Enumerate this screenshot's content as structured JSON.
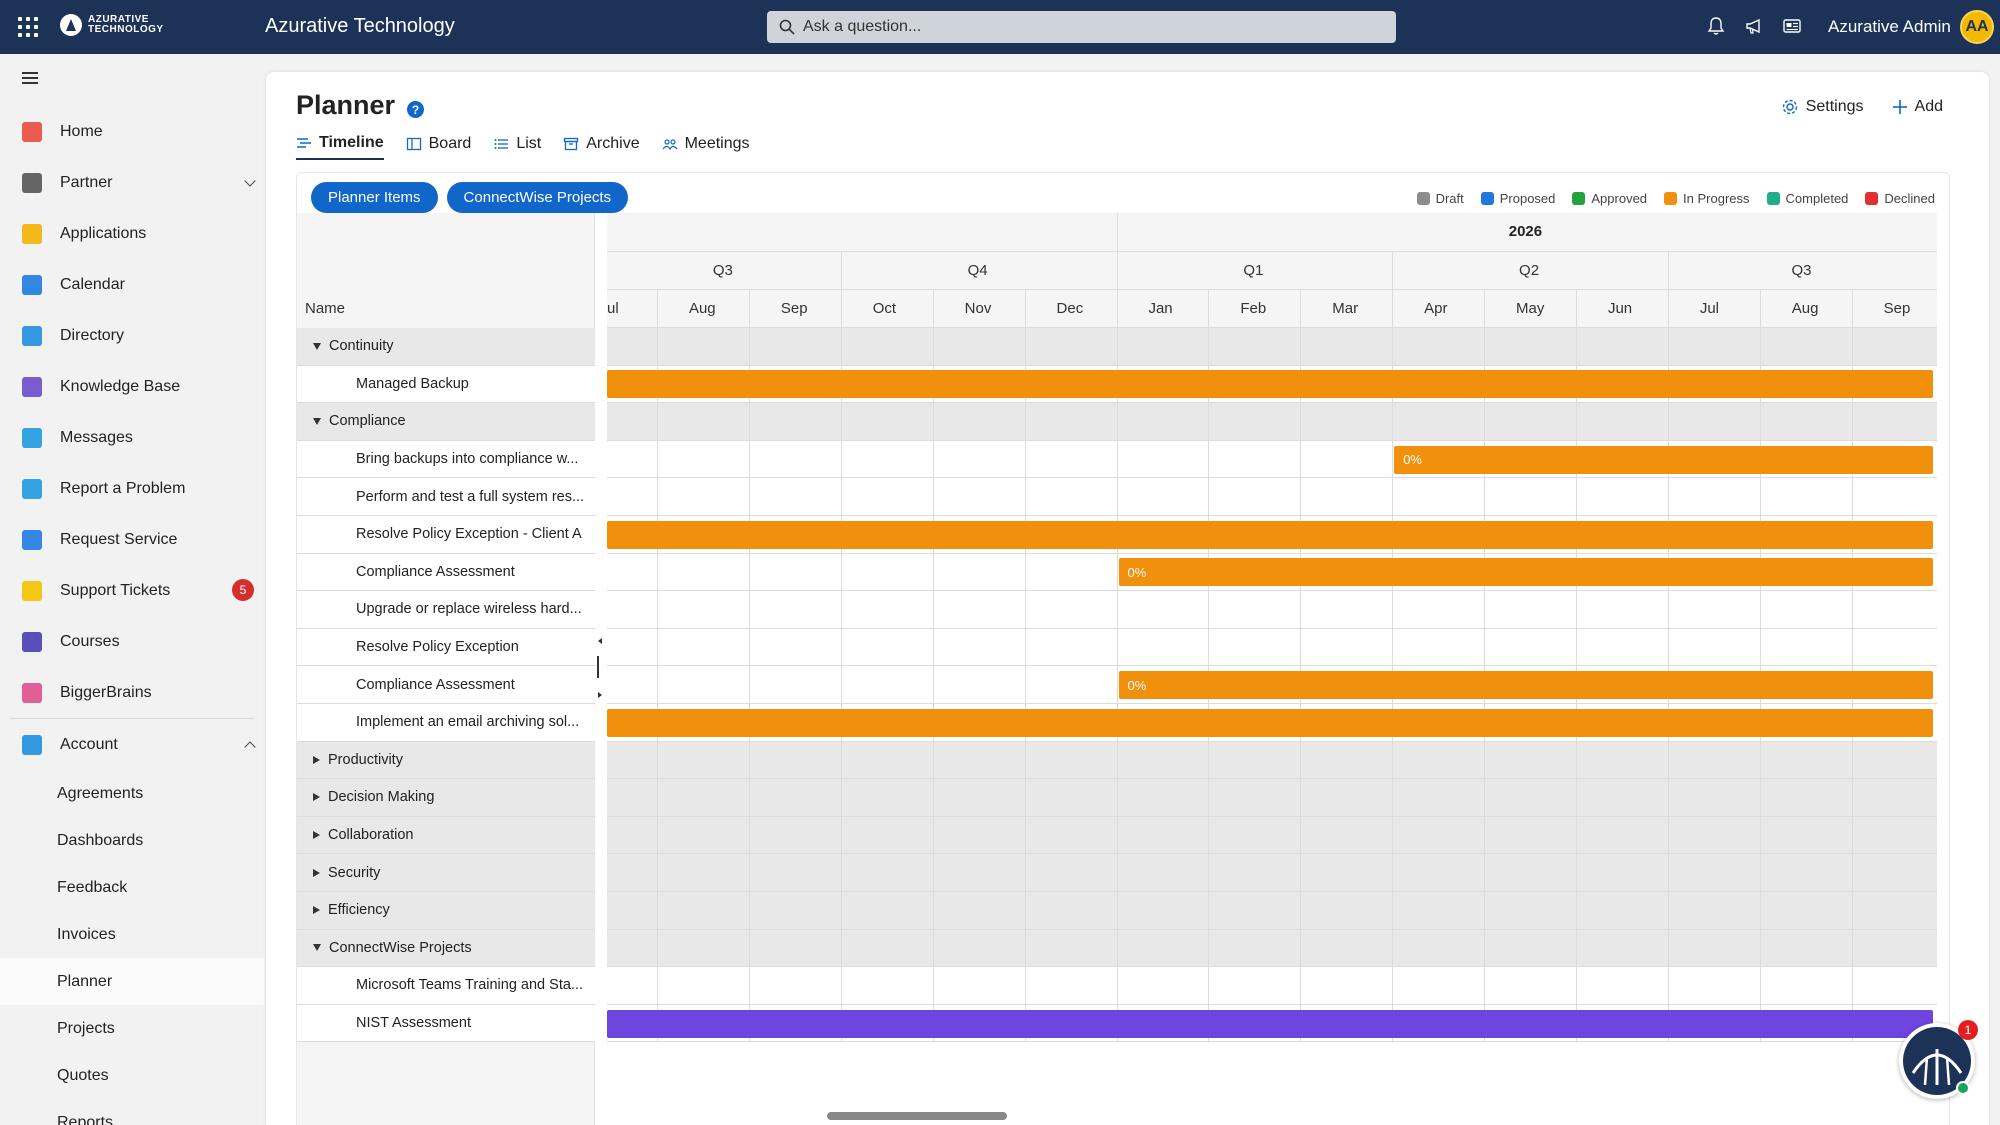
{
  "header": {
    "logo_line1": "AZURATIVE",
    "logo_line2": "TECHNOLOGY",
    "app_title": "Azurative Technology",
    "search_placeholder": "Ask a question...",
    "user_name": "Azurative Admin",
    "avatar_initials": "AA"
  },
  "sidebar": {
    "items": [
      {
        "label": "Home",
        "icon": "home-icon",
        "color": "#e94b3c"
      },
      {
        "label": "Partner",
        "icon": "partner-icon",
        "color": "#555555"
      },
      {
        "label": "Applications",
        "icon": "applications-icon",
        "color": "#f2b200"
      },
      {
        "label": "Calendar",
        "icon": "calendar-icon",
        "color": "#1e7be0"
      },
      {
        "label": "Directory",
        "icon": "directory-icon",
        "color": "#1e8fe0"
      },
      {
        "label": "Knowledge Base",
        "icon": "knowledge-base-icon",
        "color": "#6b4bc9"
      },
      {
        "label": "Messages",
        "icon": "messages-icon",
        "color": "#1e9be0"
      },
      {
        "label": "Report a Problem",
        "icon": "report-problem-icon",
        "color": "#1e9be0"
      },
      {
        "label": "Request Service",
        "icon": "request-service-icon",
        "color": "#1e7be0"
      },
      {
        "label": "Support Tickets",
        "icon": "support-tickets-icon",
        "color": "#f2c200",
        "badge": "5"
      },
      {
        "label": "Courses",
        "icon": "courses-icon",
        "color": "#4a3bb5"
      },
      {
        "label": "BiggerBrains",
        "icon": "biggerbrains-icon",
        "color": "#e04e8c"
      }
    ],
    "account": {
      "label": "Account",
      "icon": "account-icon",
      "color": "#1e8fe0"
    },
    "sub_items": [
      "Agreements",
      "Dashboards",
      "Feedback",
      "Invoices",
      "Planner",
      "Projects",
      "Quotes",
      "Reports"
    ],
    "active_sub_item": "Planner"
  },
  "page": {
    "title": "Planner",
    "help": "?",
    "settings_label": "Settings",
    "add_label": "Add",
    "tabs": [
      {
        "label": "Timeline",
        "icon": "timeline-icon",
        "active": true
      },
      {
        "label": "Board",
        "icon": "board-icon",
        "active": false
      },
      {
        "label": "List",
        "icon": "list-icon",
        "active": false
      },
      {
        "label": "Archive",
        "icon": "archive-icon",
        "active": false
      },
      {
        "label": "Meetings",
        "icon": "meetings-icon",
        "active": false
      }
    ],
    "chips": [
      "Planner Items",
      "ConnectWise Projects"
    ],
    "legend": [
      {
        "label": "Draft",
        "color": "#8c8c8c"
      },
      {
        "label": "Proposed",
        "color": "#1f7ad9"
      },
      {
        "label": "Approved",
        "color": "#23a33d"
      },
      {
        "label": "In Progress",
        "color": "#f0900c"
      },
      {
        "label": "Completed",
        "color": "#1fae8a"
      },
      {
        "label": "Declined",
        "color": "#e03030"
      }
    ]
  },
  "gantt": {
    "name_header": "Name",
    "year_label": "2026",
    "quarters": [
      "Q3",
      "Q4",
      "Q1",
      "Q2",
      "Q3"
    ],
    "months": [
      "ul",
      "Aug",
      "Sep",
      "Oct",
      "Nov",
      "Dec",
      "Jan",
      "Feb",
      "Mar",
      "Apr",
      "May",
      "Jun",
      "Jul",
      "Aug",
      "Sep"
    ],
    "rows": [
      {
        "type": "group",
        "label": "Continuity",
        "expanded": true
      },
      {
        "type": "task",
        "label": "Managed Backup",
        "bar": {
          "color": "#f0900c",
          "start": "before",
          "end": "after",
          "label": ""
        }
      },
      {
        "type": "group",
        "label": "Compliance",
        "expanded": true
      },
      {
        "type": "task",
        "label": "Bring backups into compliance w...",
        "bar": {
          "color": "#f0900c",
          "start": "Apr",
          "end": "after",
          "label": "0%"
        }
      },
      {
        "type": "task",
        "label": "Perform and test a full system res..."
      },
      {
        "type": "task",
        "label": "Resolve Policy Exception - Client A",
        "bar": {
          "color": "#f0900c",
          "start": "before",
          "end": "after",
          "label": ""
        }
      },
      {
        "type": "task",
        "label": "Compliance Assessment",
        "bar": {
          "color": "#f0900c",
          "start": "Jan",
          "end": "after",
          "label": "0%"
        }
      },
      {
        "type": "task",
        "label": "Upgrade or replace wireless hard..."
      },
      {
        "type": "task",
        "label": "Resolve Policy Exception"
      },
      {
        "type": "task",
        "label": "Compliance Assessment",
        "bar": {
          "color": "#f0900c",
          "start": "Jan",
          "end": "after",
          "label": "0%"
        }
      },
      {
        "type": "task",
        "label": "Implement an email archiving sol...",
        "bar": {
          "color": "#f0900c",
          "start": "before",
          "end": "after",
          "label": ""
        }
      },
      {
        "type": "group",
        "label": "Productivity",
        "expanded": false
      },
      {
        "type": "group",
        "label": "Decision Making",
        "expanded": false
      },
      {
        "type": "group",
        "label": "Collaboration",
        "expanded": false
      },
      {
        "type": "group",
        "label": "Security",
        "expanded": false
      },
      {
        "type": "group",
        "label": "Efficiency",
        "expanded": false
      },
      {
        "type": "group",
        "label": "ConnectWise Projects",
        "expanded": true
      },
      {
        "type": "task",
        "label": "Microsoft Teams Training and Sta..."
      },
      {
        "type": "task",
        "label": "NIST Assessment",
        "bar": {
          "color": "#6f45e0",
          "start": "before",
          "end": "after",
          "label": ""
        }
      }
    ]
  },
  "floating": {
    "badge": "1"
  }
}
